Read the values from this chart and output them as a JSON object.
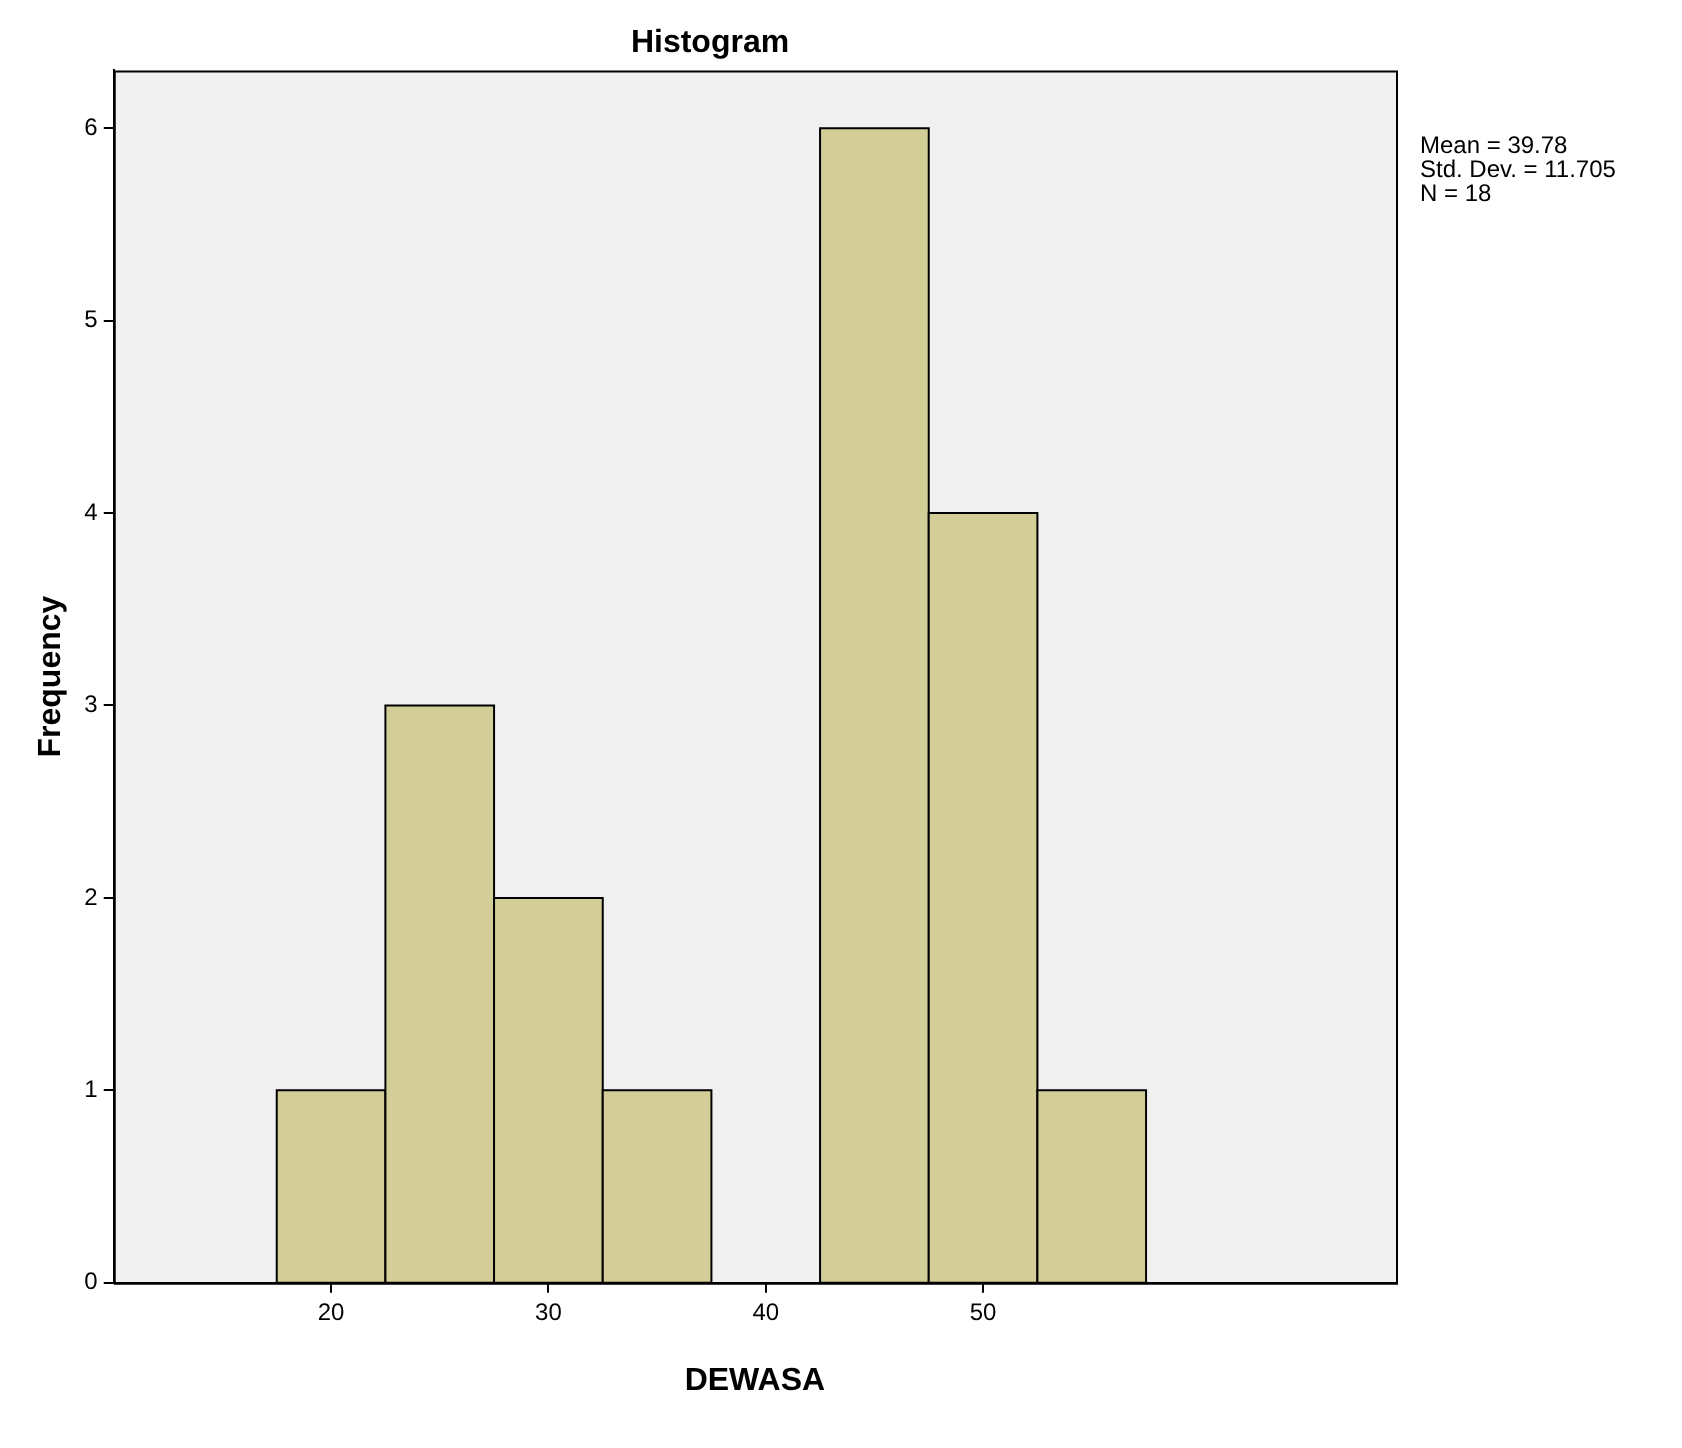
{
  "chart_data": {
    "type": "histogram",
    "title": "Histogram",
    "xlabel": "DEWASA",
    "ylabel": "Frequency",
    "bins": [
      17.5,
      22.5,
      27.5,
      32.5,
      37.5,
      42.5,
      47.5,
      52.5,
      57.5
    ],
    "values": [
      1,
      3,
      2,
      1,
      0,
      6,
      4,
      1
    ],
    "color": "#d3ce97",
    "xlim": [
      10,
      69
    ],
    "xticks": [
      20,
      30,
      40,
      50
    ],
    "ylim": [
      0,
      6.3
    ],
    "yticks": [
      0,
      1,
      2,
      3,
      4,
      5,
      6
    ],
    "grid": false,
    "legend": false,
    "annotations": [
      "Mean = 39.78",
      "Std. Dev. = 11.705",
      "N = 18"
    ]
  }
}
